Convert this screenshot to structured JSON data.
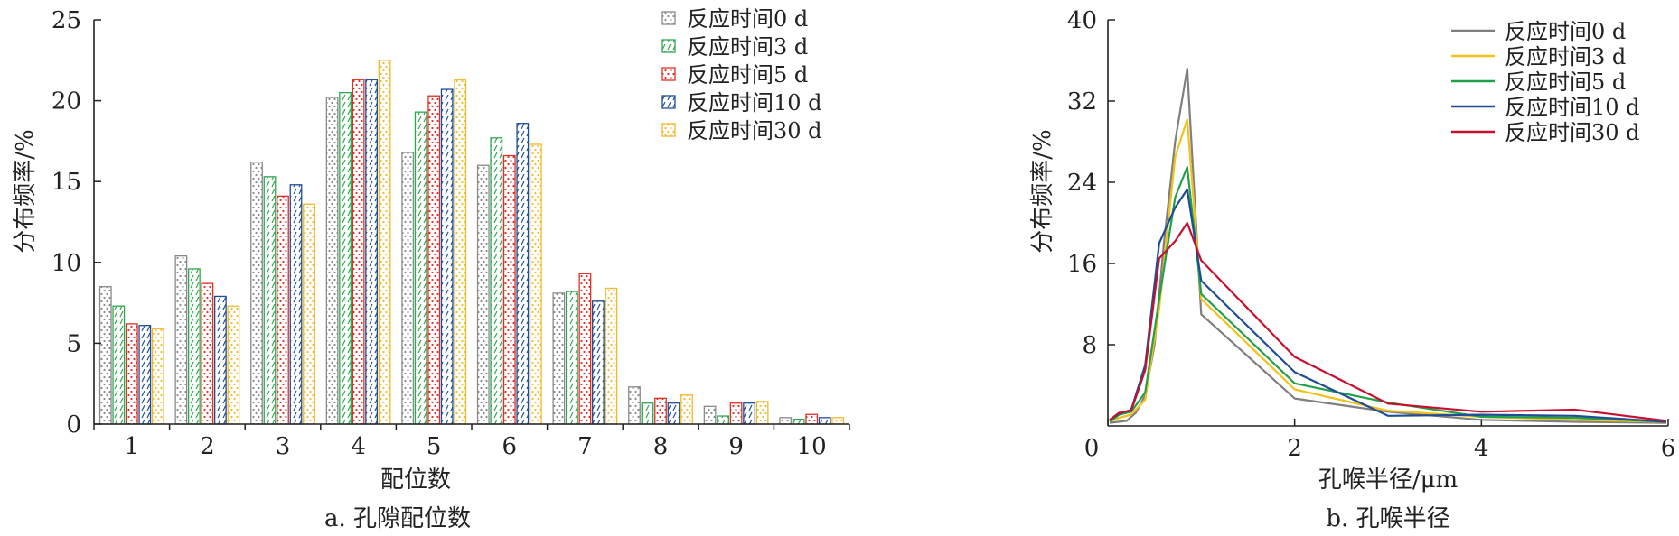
{
  "chart_data": [
    {
      "type": "bar",
      "caption": "a. 孔隙配位数",
      "xlabel": "配位数",
      "ylabel": "分布频率/%",
      "ylim": [
        0,
        25
      ],
      "yticks": [
        0,
        5,
        10,
        15,
        20,
        25
      ],
      "categories": [
        "1",
        "2",
        "3",
        "4",
        "5",
        "6",
        "7",
        "8",
        "9",
        "10"
      ],
      "legend_position": "top-right",
      "series": [
        {
          "name": "反应时间0 d",
          "color": "#8a8a8a",
          "values": [
            8.5,
            10.4,
            16.2,
            20.2,
            16.8,
            16.0,
            8.1,
            2.3,
            1.1,
            0.4
          ]
        },
        {
          "name": "反应时间3 d",
          "color": "#2fa84f",
          "values": [
            7.3,
            9.6,
            15.3,
            20.5,
            19.3,
            17.7,
            8.2,
            1.3,
            0.5,
            0.3
          ]
        },
        {
          "name": "反应时间5 d",
          "color": "#e03127",
          "values": [
            6.2,
            8.7,
            14.1,
            21.3,
            20.3,
            16.6,
            9.3,
            1.6,
            1.3,
            0.6
          ]
        },
        {
          "name": "反应时间10 d",
          "color": "#1f4e96",
          "values": [
            6.1,
            7.9,
            14.8,
            21.3,
            20.7,
            18.6,
            7.6,
            1.3,
            1.3,
            0.4
          ]
        },
        {
          "name": "反应时间30 d",
          "color": "#f2b92a",
          "values": [
            5.9,
            7.3,
            13.6,
            22.5,
            21.3,
            17.3,
            8.4,
            1.8,
            1.4,
            0.4
          ]
        }
      ]
    },
    {
      "type": "line",
      "caption": "b. 孔喉半径",
      "xlabel": "孔喉半径/μm",
      "ylabel": "分布频率/%",
      "xlim": [
        0,
        6
      ],
      "ylim": [
        0,
        40
      ],
      "xticks": [
        0,
        2,
        4,
        6
      ],
      "yticks": [
        8,
        16,
        24,
        32,
        40
      ],
      "legend_position": "top-right",
      "series": [
        {
          "name": "反应时间0 d",
          "color": "#7f7f7f",
          "x": [
            0.02,
            0.2,
            0.3,
            0.4,
            0.5,
            0.6,
            0.72,
            0.85,
            1.0,
            2.0,
            3.0,
            4.0,
            5.0,
            5.98
          ],
          "y": [
            0.3,
            0.5,
            1.3,
            3.0,
            8.0,
            18.0,
            28.0,
            35.2,
            11.0,
            2.7,
            1.4,
            0.6,
            0.4,
            0.3
          ]
        },
        {
          "name": "反应时间3 d",
          "color": "#f2c21b",
          "x": [
            0.02,
            0.12,
            0.25,
            0.4,
            0.55,
            0.72,
            0.85,
            1.0,
            2.0,
            3.0,
            4.0,
            5.0,
            5.98
          ],
          "y": [
            0.4,
            0.8,
            1.1,
            2.6,
            11.5,
            26.5,
            30.2,
            12.5,
            3.6,
            1.5,
            0.9,
            0.6,
            0.4
          ]
        },
        {
          "name": "反应时间5 d",
          "color": "#23a04a",
          "x": [
            0.02,
            0.12,
            0.25,
            0.4,
            0.55,
            0.72,
            0.85,
            1.0,
            2.0,
            3.0,
            4.0,
            5.0,
            5.98
          ],
          "y": [
            0.4,
            1.1,
            1.4,
            3.3,
            12.5,
            22.5,
            25.5,
            13.0,
            4.2,
            2.3,
            0.9,
            0.8,
            0.4
          ]
        },
        {
          "name": "反应时间10 d",
          "color": "#1f4e96",
          "x": [
            0.02,
            0.12,
            0.25,
            0.4,
            0.55,
            0.72,
            0.85,
            1.0,
            2.0,
            3.0,
            4.0,
            5.0,
            5.98
          ],
          "y": [
            0.6,
            1.2,
            1.6,
            6.0,
            18.0,
            21.5,
            23.3,
            14.3,
            5.3,
            1.0,
            1.1,
            1.0,
            0.4
          ]
        },
        {
          "name": "反应时间30 d",
          "color": "#c8102e",
          "x": [
            0.02,
            0.12,
            0.25,
            0.4,
            0.55,
            0.72,
            0.85,
            1.0,
            2.0,
            3.0,
            4.0,
            5.0,
            5.98
          ],
          "y": [
            0.6,
            1.3,
            1.5,
            5.5,
            16.5,
            18.2,
            20.0,
            16.3,
            6.8,
            2.2,
            1.4,
            1.6,
            0.5
          ]
        }
      ]
    }
  ]
}
